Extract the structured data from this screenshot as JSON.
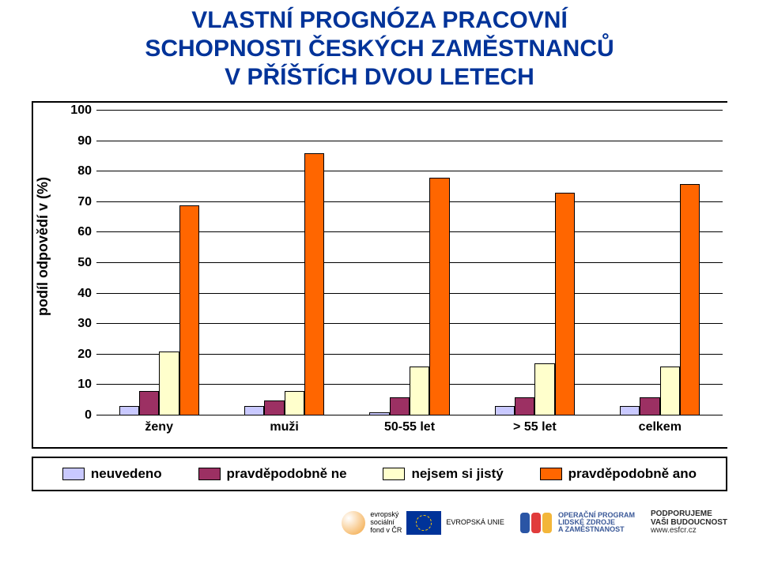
{
  "title_line1": "VLASTNÍ PROGNÓZA PRACOVNÍ",
  "title_line2": "SCHOPNOSTI ČESKÝCH ZAMĚSTNANCŮ",
  "title_line3": "V PŘÍŠTÍCH DVOU LETECH",
  "title_color": "#003399",
  "chart": {
    "type": "bar",
    "y_axis_label": "podíl odpovědí v (%)",
    "ylim": [
      0,
      100
    ],
    "ytick_step": 10,
    "yticks": [
      0,
      10,
      20,
      30,
      40,
      50,
      60,
      70,
      80,
      90,
      100
    ],
    "categories": [
      "ženy",
      "muži",
      "50-55 let",
      "> 55 let",
      "celkem"
    ],
    "series": [
      {
        "key": "neuvedeno",
        "label": "neuvedeno",
        "color": "#c9c9ff"
      },
      {
        "key": "pravdepodobne_ne",
        "label": "pravděpodobně ne",
        "color": "#9c3063"
      },
      {
        "key": "nejsem_si_jisty",
        "label": "nejsem si jistý",
        "color": "#ffffcc"
      },
      {
        "key": "pravdepodobne_ano",
        "label": "pravděpodobně ano",
        "color": "#ff6600"
      }
    ],
    "values": {
      "neuvedeno": [
        3,
        3,
        1,
        3,
        3
      ],
      "pravdepodobne_ne": [
        8,
        5,
        6,
        6,
        6
      ],
      "nejsem_si_jisty": [
        21,
        8,
        16,
        17,
        16
      ],
      "pravdepodobne_ano": [
        69,
        86,
        78,
        73,
        76
      ]
    },
    "bar_width_pct": 3.2,
    "group_width_pct": 20,
    "bar_border_color": "#000000",
    "grid_color": "#000000",
    "background_color": "#ffffff"
  },
  "legend": [
    {
      "swatch": "#c9c9ff",
      "label": "neuvedeno"
    },
    {
      "swatch": "#9c3063",
      "label": "pravděpodobně ne"
    },
    {
      "swatch": "#ffffcc",
      "label": "nejsem si jistý"
    },
    {
      "swatch": "#ff6600",
      "label": "pravděpodobně ano"
    }
  ],
  "footer": {
    "esf_lines": "evropský\nsociální\nfond v ČR",
    "eu_label": "EVROPSKÁ UNIE",
    "oplzz_label": "OPERAČNÍ PROGRAM\nLIDSKÉ ZDROJE\nA ZAMĚSTNANOST",
    "podpor_label": "PODPORUJEME\nVAŠI BUDOUCNOST",
    "url": "www.esfcr.cz",
    "oplzz_colors": [
      "#2a55a5",
      "#e13b3b",
      "#f3b63a"
    ]
  }
}
